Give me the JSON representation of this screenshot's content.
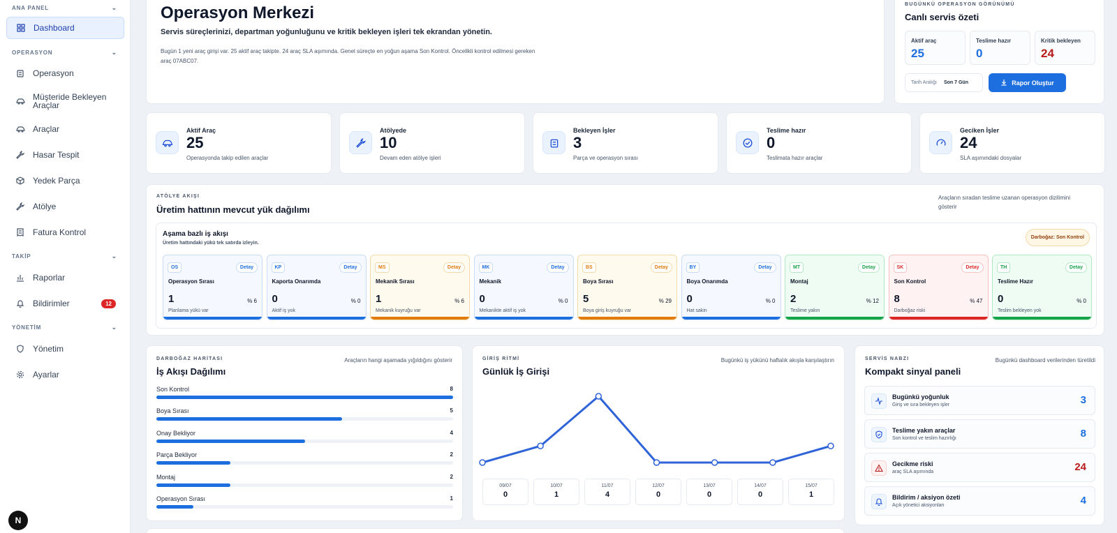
{
  "sidebar": {
    "sections": [
      "ANA PANEL",
      "OPERASYON",
      "TAKİP",
      "YÖNETİM"
    ],
    "items": [
      {
        "label": "Dashboard",
        "icon": "grid-icon"
      },
      {
        "label": "Operasyon",
        "icon": "clipboard-icon"
      },
      {
        "label": "Müşteride Bekleyen",
        "label2": "Araçlar",
        "icon": "car-icon"
      },
      {
        "label": "Araçlar",
        "icon": "car-icon"
      },
      {
        "label": "Hasar Tespit",
        "icon": "wrench-icon"
      },
      {
        "label": "Yedek Parça",
        "icon": "box-icon"
      },
      {
        "label": "Atölye",
        "icon": "wrench-icon"
      },
      {
        "label": "Fatura Kontrol",
        "icon": "receipt-icon"
      },
      {
        "label": "Raporlar",
        "icon": "bar-chart-icon"
      },
      {
        "label": "Bildirimler",
        "icon": "bell-icon",
        "badge": "12"
      },
      {
        "label": "Yönetim",
        "icon": "shield-icon"
      },
      {
        "label": "Ayarlar",
        "icon": "gear-icon"
      }
    ],
    "logo": "N"
  },
  "hero": {
    "title": "Operasyon Merkezi",
    "subtitle": "Servis süreçlerinizi, departman yoğunluğunu ve kritik bekleyen işleri tek ekrandan yönetin.",
    "desc1": "Bugün 1 yeni araç girişi var. 25 aktif araç takipte. 24 araç SLA aşımında. Genel süreçte en yoğun aşama Son Kontrol. Öncelikli kontrol edilmesi gereken",
    "desc2": "araç 07ABC07."
  },
  "summary": {
    "eyebrow": "BUGÜNKÜ OPERASYON GÖRÜNÜMÜ",
    "title": "Canlı servis özeti",
    "kpis": [
      {
        "label": "Aktif araç",
        "value": "25",
        "color": "#1d6fe0"
      },
      {
        "label": "Teslime hazır",
        "value": "0",
        "color": "#1d6fe0"
      },
      {
        "label": "Kritik bekleyen",
        "value": "24",
        "color": "#b91c1c"
      }
    ],
    "date_label": "Tarih Aralığı",
    "date_value": "Son 7 Gün",
    "report_button": "Rapor Oluştur"
  },
  "stats": [
    {
      "label": "Aktif Araç",
      "value": "25",
      "sub": "Operasyonda takip edilen araçlar",
      "icon": "car-icon"
    },
    {
      "label": "Atölyede",
      "value": "10",
      "sub": "Devam eden atölye işleri",
      "icon": "wrench-icon"
    },
    {
      "label": "Bekleyen İşler",
      "value": "3",
      "sub": "Parça ve operasyon sırası",
      "icon": "clipboard-icon"
    },
    {
      "label": "Teslime hazır",
      "value": "0",
      "sub": "Teslimata hazır araçlar",
      "icon": "check-circle-icon"
    },
    {
      "label": "Geciken İşler",
      "value": "24",
      "sub": "SLA aşımındaki dosyalar",
      "icon": "gauge-icon"
    }
  ],
  "workflow": {
    "eyebrow": "ATÖLYE AKIŞI",
    "title": "Üretim hattının mevcut yük dağılımı",
    "note1": "Araçların sıradan teslime uzanan operasyon dizilimini",
    "note2": "gösterir",
    "inner_title": "Aşama bazlı iş akışı",
    "inner_sub": "Üretim hattındaki yükü tek satırda izleyin.",
    "bottleneck": "Darboğaz: Son Kontrol",
    "detail_label": "Detay",
    "stages": [
      {
        "code": "OS",
        "name": "Operasyon Sırası",
        "count": "1",
        "pct": "% 6",
        "sub": "Planlama yükü var",
        "color": "#1d6fe0",
        "bg": "#f5f9ff",
        "border": "#c9dbf5"
      },
      {
        "code": "KP",
        "name": "Kaporta Onarımda",
        "count": "0",
        "pct": "% 0",
        "sub": "Aktif iş yok",
        "color": "#1d6fe0",
        "bg": "#f5f9ff",
        "border": "#c9dbf5"
      },
      {
        "code": "MS",
        "name": "Mekanik Sırası",
        "count": "1",
        "pct": "% 6",
        "sub": "Mekanik kuyruğu var",
        "color": "#e07b0c",
        "bg": "#fffaee",
        "border": "#f3d9a6"
      },
      {
        "code": "MK",
        "name": "Mekanik",
        "count": "0",
        "pct": "% 0",
        "sub": "Mekanikte aktif iş yok",
        "color": "#1d6fe0",
        "bg": "#f5f9ff",
        "border": "#c9dbf5"
      },
      {
        "code": "BS",
        "name": "Boya Sırası",
        "count": "5",
        "pct": "% 29",
        "sub": "Boya giriş kuyruğu var",
        "color": "#e07b0c",
        "bg": "#fffaee",
        "border": "#f3d9a6"
      },
      {
        "code": "BY",
        "name": "Boya Onarımda",
        "count": "0",
        "pct": "% 0",
        "sub": "Hat sakin",
        "color": "#1d6fe0",
        "bg": "#f5f9ff",
        "border": "#c9dbf5"
      },
      {
        "code": "MT",
        "name": "Montaj",
        "count": "2",
        "pct": "% 12",
        "sub": "Teslime yakın",
        "color": "#16a34a",
        "bg": "#effcf3",
        "border": "#b6e8c6"
      },
      {
        "code": "SK",
        "name": "Son Kontrol",
        "count": "8",
        "pct": "% 47",
        "sub": "Darboğaz riski",
        "color": "#dc2626",
        "bg": "#fff2f2",
        "border": "#f5c2c2"
      },
      {
        "code": "TH",
        "name": "Teslime Hazır",
        "count": "0",
        "pct": "% 0",
        "sub": "Teslim bekleyen yok",
        "color": "#16a34a",
        "bg": "#effcf3",
        "border": "#b6e8c6"
      }
    ]
  },
  "flow": {
    "eyebrow": "DARBOĞAZ HARİTASI",
    "title": "İş Akışı Dağılımı",
    "note": "Araçların hangi aşamada yığıldığını gösterir",
    "rows": [
      {
        "label": "Son Kontrol",
        "value": 8
      },
      {
        "label": "Boya Sırası",
        "value": 5
      },
      {
        "label": "Onay Bekliyor",
        "value": 4
      },
      {
        "label": "Parça Bekliyor",
        "value": 2
      },
      {
        "label": "Montaj",
        "value": 2
      },
      {
        "label": "Operasyon Sırası",
        "value": 1
      }
    ],
    "max": 8
  },
  "daily": {
    "eyebrow": "GİRİŞ RİTMİ",
    "title": "Günlük İş Girişi",
    "note": "Bugünkü iş yükünü haftalık akışla karşılaştırın"
  },
  "chart_data": {
    "type": "line",
    "x": [
      "09/07",
      "10/07",
      "11/07",
      "12/07",
      "13/07",
      "14/07",
      "15/07"
    ],
    "values": [
      0,
      1,
      4,
      0,
      0,
      0,
      1
    ],
    "color": "#2f63d8",
    "grid": false,
    "ylim": [
      0,
      4
    ]
  },
  "signals": {
    "eyebrow": "SERVİS NABZI",
    "title": "Kompakt sinyal paneli",
    "note": "Bugünkü dashboard verilerinden türetildi",
    "items": [
      {
        "title": "Bugünkü yoğunluk",
        "sub": "Giriş ve sıra bekleyen işler",
        "value": "3",
        "icon": "activity-icon",
        "color": "#1d6fe0"
      },
      {
        "title": "Teslime yakın araçlar",
        "sub": "Son kontrol ve teslim hazırlığı",
        "value": "8",
        "icon": "shield-check-icon",
        "color": "#1d6fe0"
      },
      {
        "title": "Gecikme riski",
        "sub": "araç SLA aşımında",
        "value": "24",
        "icon": "alert-triangle-icon",
        "color": "#b91c1c"
      },
      {
        "title": "Bildirim / aksiyon özeti",
        "sub": "Açık yönetici aksiyonları",
        "value": "4",
        "icon": "bell-icon",
        "color": "#1d6fe0"
      }
    ]
  }
}
